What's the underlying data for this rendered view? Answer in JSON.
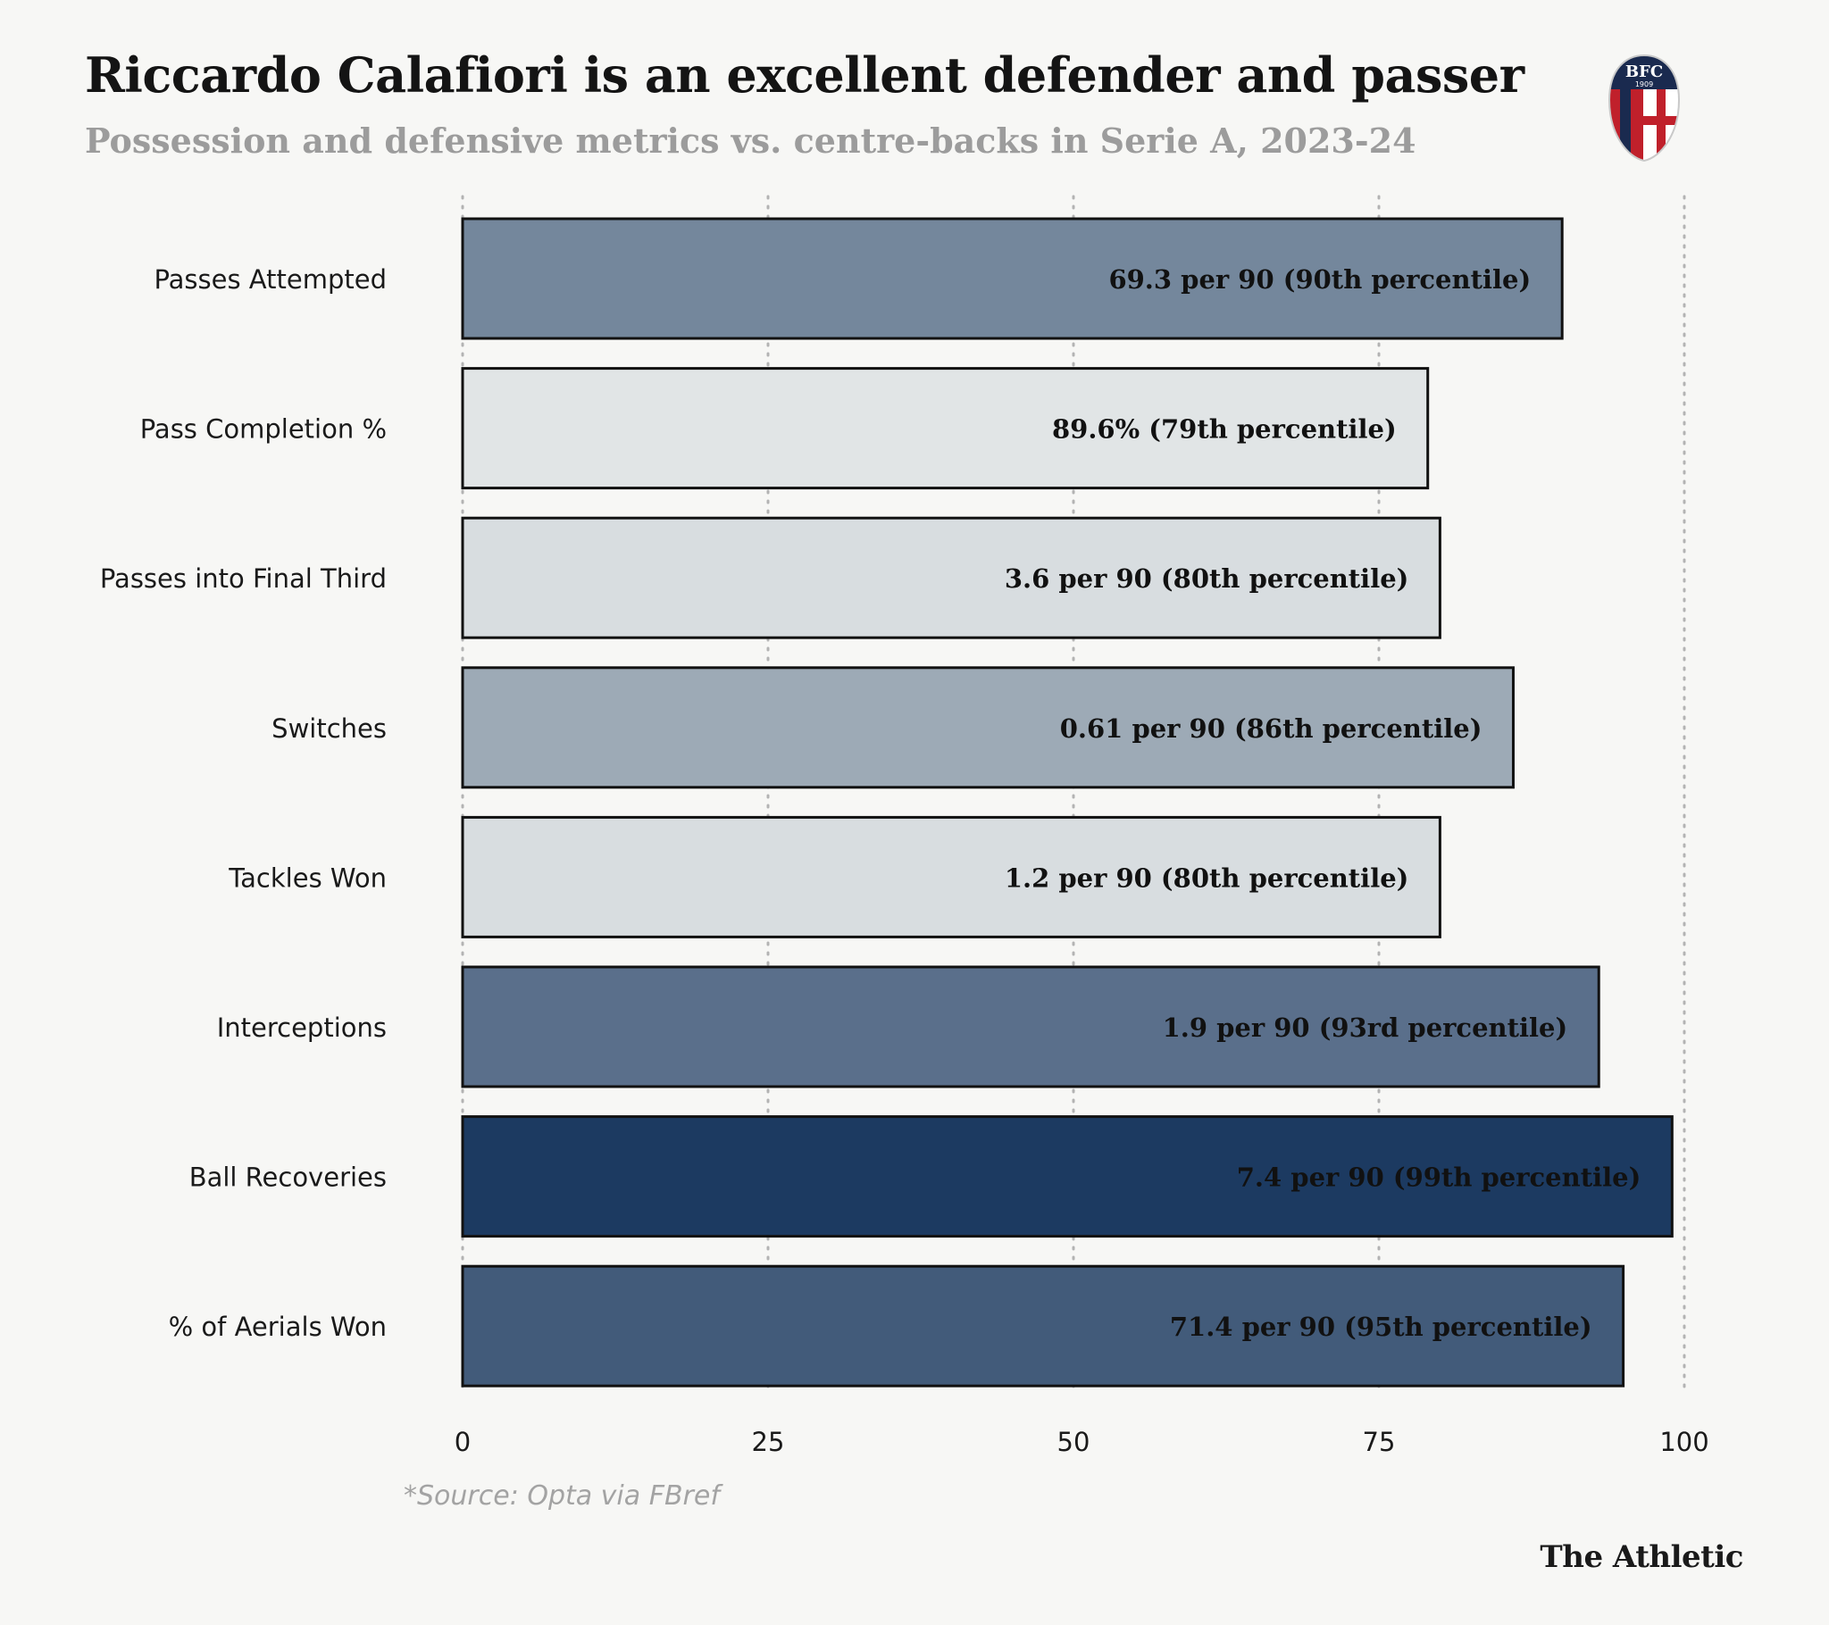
{
  "header": {
    "title": "Riccardo Calafiori is an excellent defender and passer",
    "subtitle": "Possession and defensive metrics vs. centre-backs in Serie A, 2023-24"
  },
  "crest": {
    "line1": "BFC",
    "line2": "1909",
    "colors": {
      "blue": "#1a2a4f",
      "red": "#c0202b",
      "white": "#ffffff"
    }
  },
  "chart_data": {
    "type": "bar",
    "orientation": "horizontal",
    "title": "Riccardo Calafiori is an excellent defender and passer",
    "subtitle": "Possession and defensive metrics vs. centre-backs in Serie A, 2023-24",
    "xlabel": "",
    "ylabel": "",
    "xlim": [
      0,
      100
    ],
    "xticks": [
      0,
      25,
      50,
      75,
      100
    ],
    "grid": "vertical dotted",
    "categories": [
      "Passes Attempted",
      "Pass Completion %",
      "Passes into Final Third",
      "Switches",
      "Tackles Won",
      "Interceptions",
      "Ball Recoveries",
      "% of Aerials Won"
    ],
    "values": [
      90,
      79,
      80,
      86,
      80,
      93,
      99,
      95
    ],
    "labels": [
      "69.3 per 90 (90th percentile)",
      "89.6% (79th percentile)",
      "3.6 per 90 (80th percentile)",
      "0.61 per 90 (86th percentile)",
      "1.2 per 90 (80th percentile)",
      "1.9 per 90 (93rd percentile)",
      "7.4 per 90 (99th percentile)",
      "71.4 per 90 (95th percentile)"
    ],
    "colors": [
      "#74879c",
      "#e1e5e6",
      "#d8dde0",
      "#9daab6",
      "#d8dde0",
      "#5a6f8b",
      "#1c3a61",
      "#425b7a"
    ],
    "label_colors": [
      "#111111",
      "#111111",
      "#111111",
      "#111111",
      "#111111",
      "#111111",
      "#111111",
      "#111111"
    ]
  },
  "footer": {
    "source": "*Source: Opta via FBref",
    "brand": "The Athletic"
  }
}
